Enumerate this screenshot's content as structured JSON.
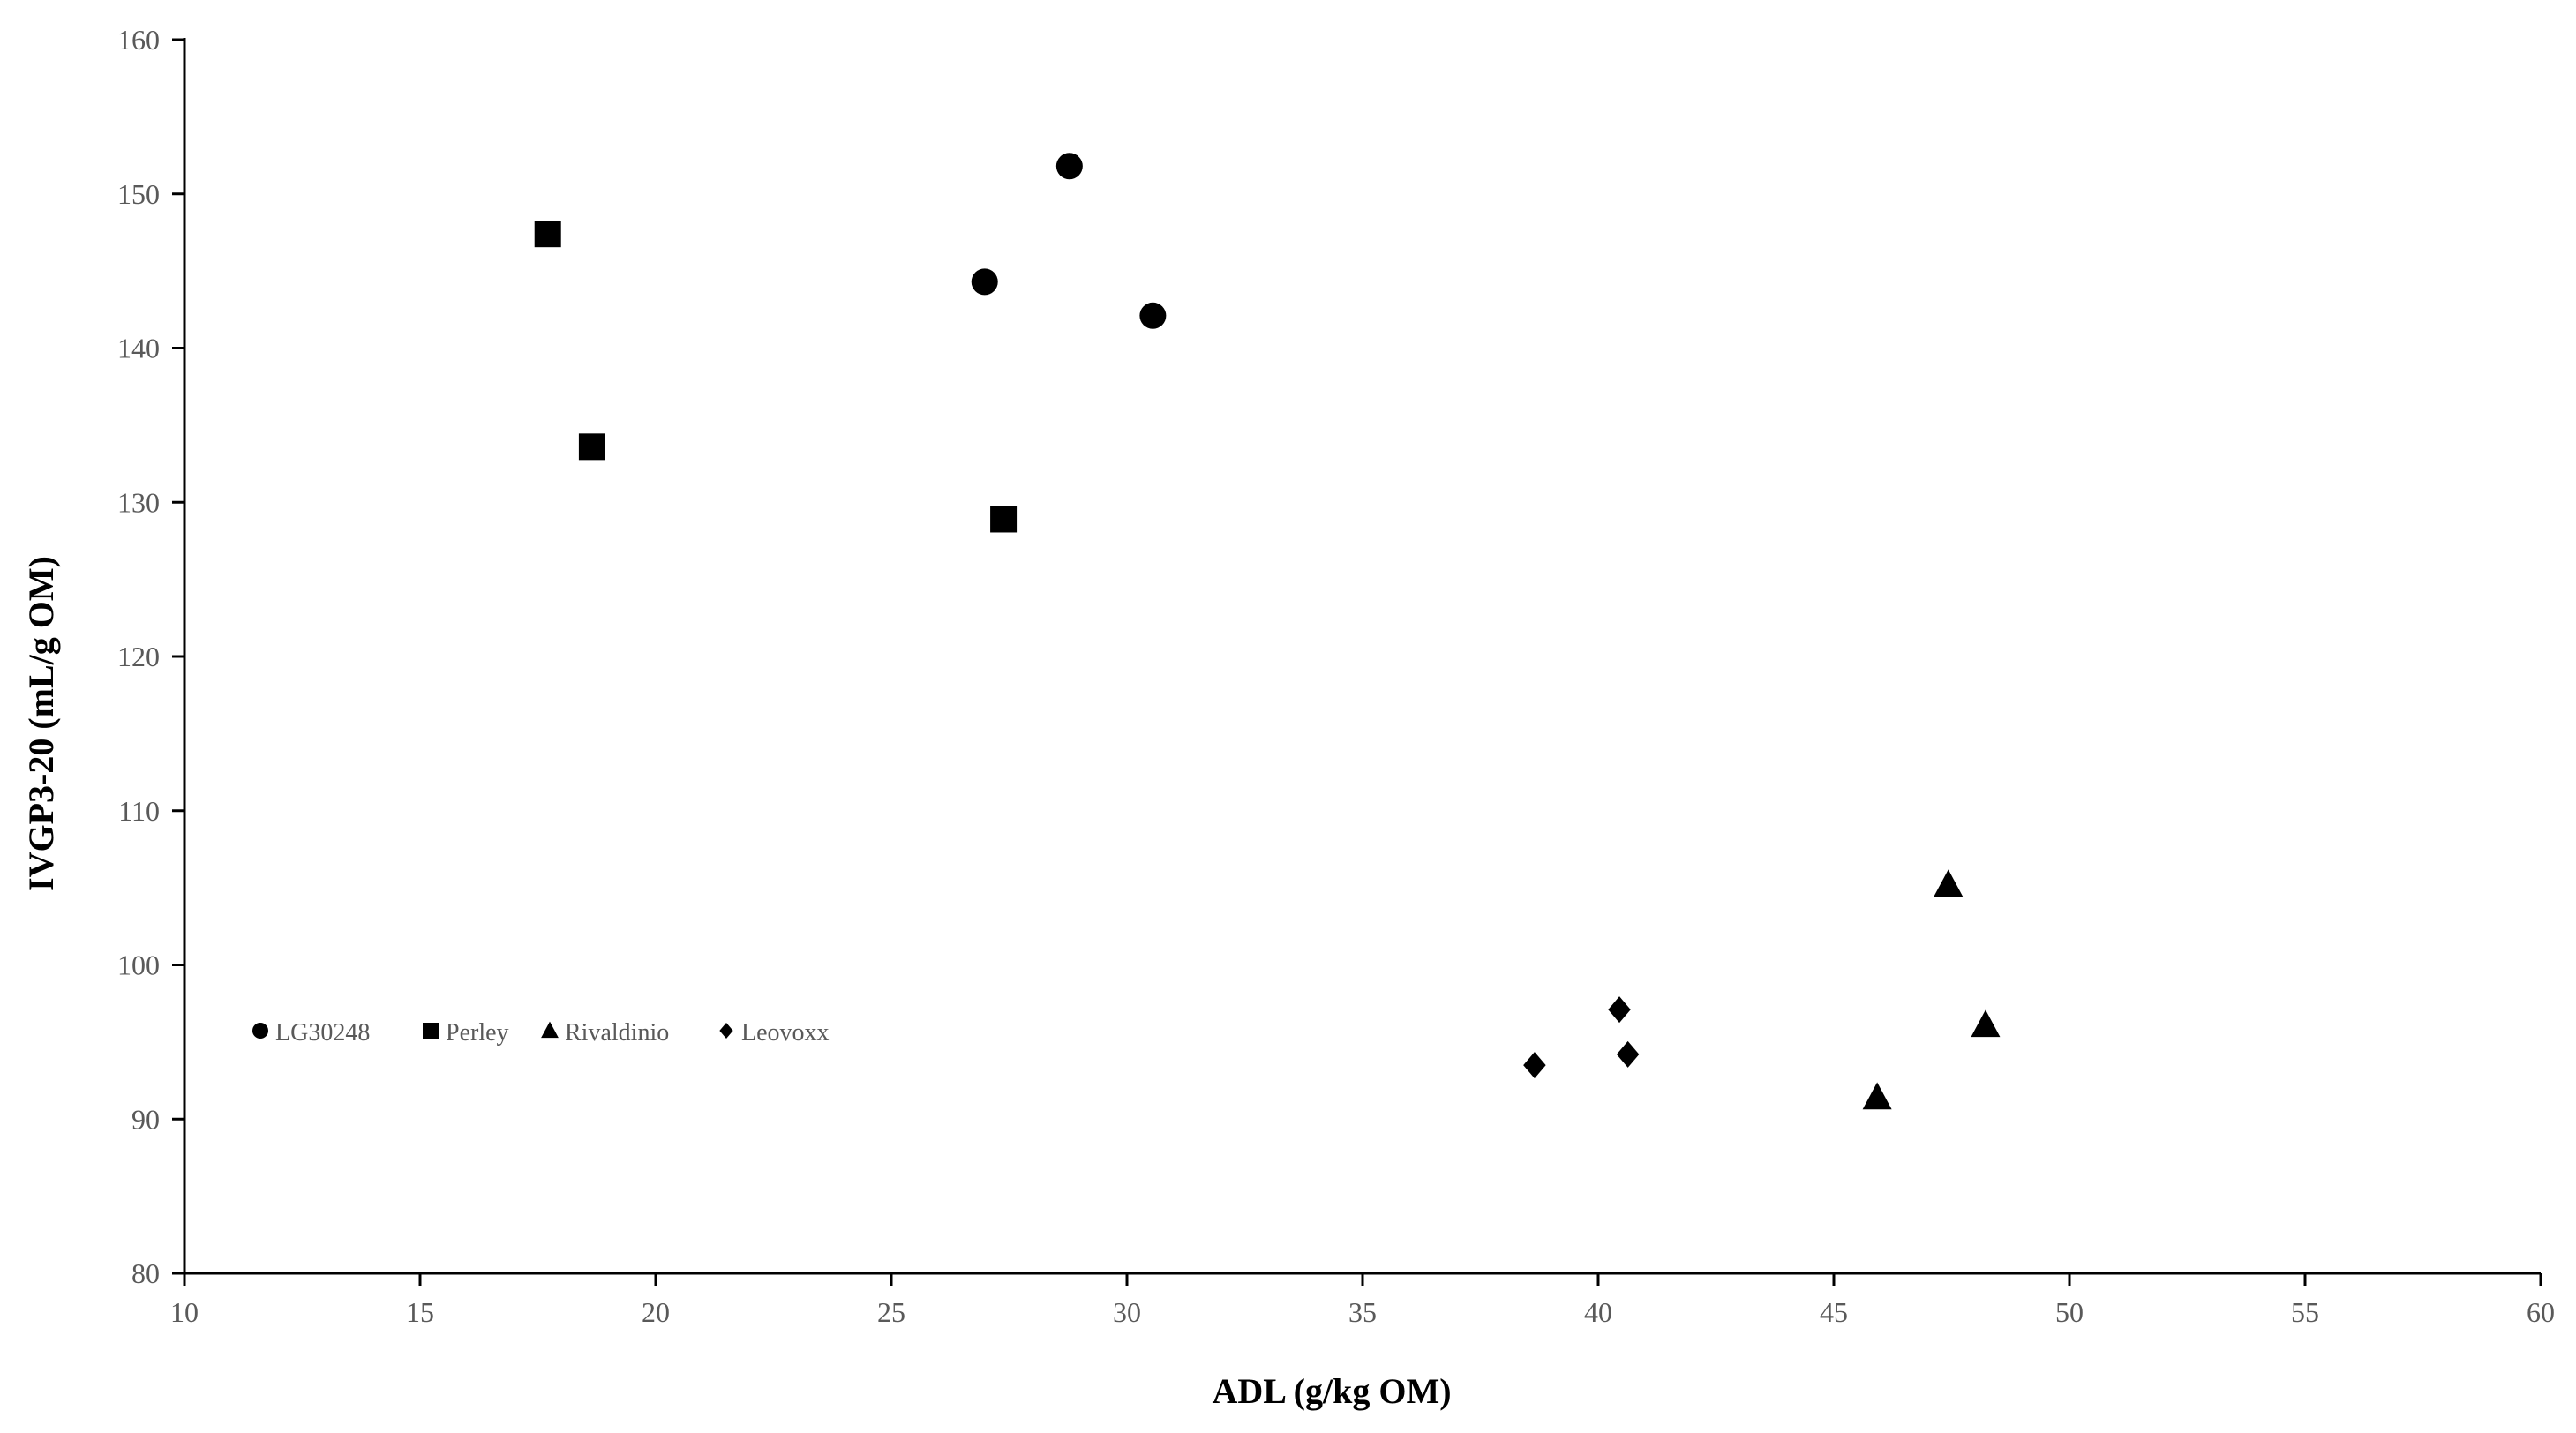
{
  "chart_data": {
    "type": "scatter",
    "title": "",
    "xlabel": "ADL (g/kg OM)",
    "ylabel": "IVGP3-20 (mL/g OM)",
    "xlim": [
      10,
      60
    ],
    "ylim": [
      80,
      160
    ],
    "xticks": [
      10,
      15,
      20,
      25,
      30,
      35,
      40,
      45,
      50,
      55,
      60
    ],
    "yticks": [
      80,
      90,
      100,
      110,
      120,
      130,
      140,
      150,
      160
    ],
    "grid": false,
    "legend_position": "inside-lower-left",
    "series": [
      {
        "name": "LG30248",
        "marker": "circle",
        "color": "#000000",
        "x": [
          26.98,
          28.78,
          30.55
        ],
        "y": [
          144.3,
          151.8,
          142.1
        ]
      },
      {
        "name": "Perley",
        "marker": "square",
        "color": "#000000",
        "x": [
          17.71,
          18.65,
          27.38
        ],
        "y": [
          147.4,
          133.6,
          128.9
        ]
      },
      {
        "name": "Rivaldinio",
        "marker": "triangle",
        "color": "#000000",
        "x": [
          45.92,
          47.43,
          48.22
        ],
        "y": [
          91.4,
          105.2,
          96.1
        ]
      },
      {
        "name": "Leovoxx",
        "marker": "diamond",
        "color": "#000000",
        "x": [
          38.65,
          40.45,
          40.63
        ],
        "y": [
          93.5,
          97.1,
          94.2
        ]
      }
    ]
  }
}
